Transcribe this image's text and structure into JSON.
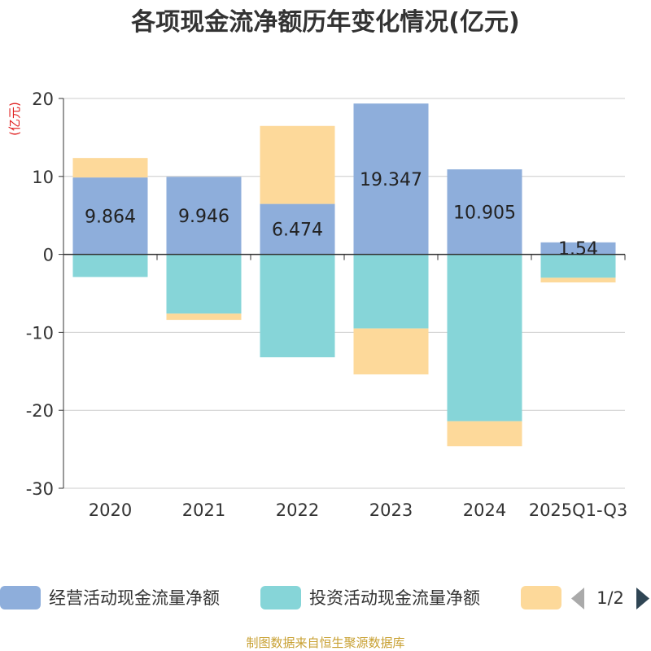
{
  "chart_data": {
    "type": "bar",
    "stacked": true,
    "title": "各项现金流净额历年变化情况(亿元)",
    "ylabel": "(亿元)",
    "xlabel": "",
    "ylim": [
      -30,
      20
    ],
    "yticks": [
      20,
      10,
      0,
      -10,
      -20,
      -30
    ],
    "grid": true,
    "categories": [
      "2020",
      "2021",
      "2022",
      "2023",
      "2024",
      "2025Q1-Q3"
    ],
    "series": [
      {
        "name": "经营活动现金流量净额",
        "color": "#8eaedb",
        "values": [
          9.864,
          9.946,
          6.474,
          19.347,
          10.905,
          1.54
        ],
        "data_labels": [
          "9.864",
          "9.946",
          "6.474",
          "19.347",
          "10.905",
          "1.54"
        ]
      },
      {
        "name": "投资活动现金流量净额",
        "color": "#86d5d8",
        "values": [
          -2.9,
          -7.6,
          -13.2,
          -9.5,
          -21.4,
          -3.0
        ]
      },
      {
        "name": "",
        "color": "#fdd99a",
        "values": [
          2.5,
          -0.8,
          10.0,
          -5.9,
          -3.2,
          -0.6
        ]
      }
    ],
    "legend": {
      "placement": "bottom",
      "page": "1/2"
    }
  },
  "source_text": "制图数据来自恒生聚源数据库",
  "colors": {
    "axis": "#333333",
    "grid": "#cccccc",
    "unit": "#e02020",
    "source": "#c8a032",
    "pager_active": "#2f4554",
    "pager_inactive": "#aaaaaa"
  }
}
